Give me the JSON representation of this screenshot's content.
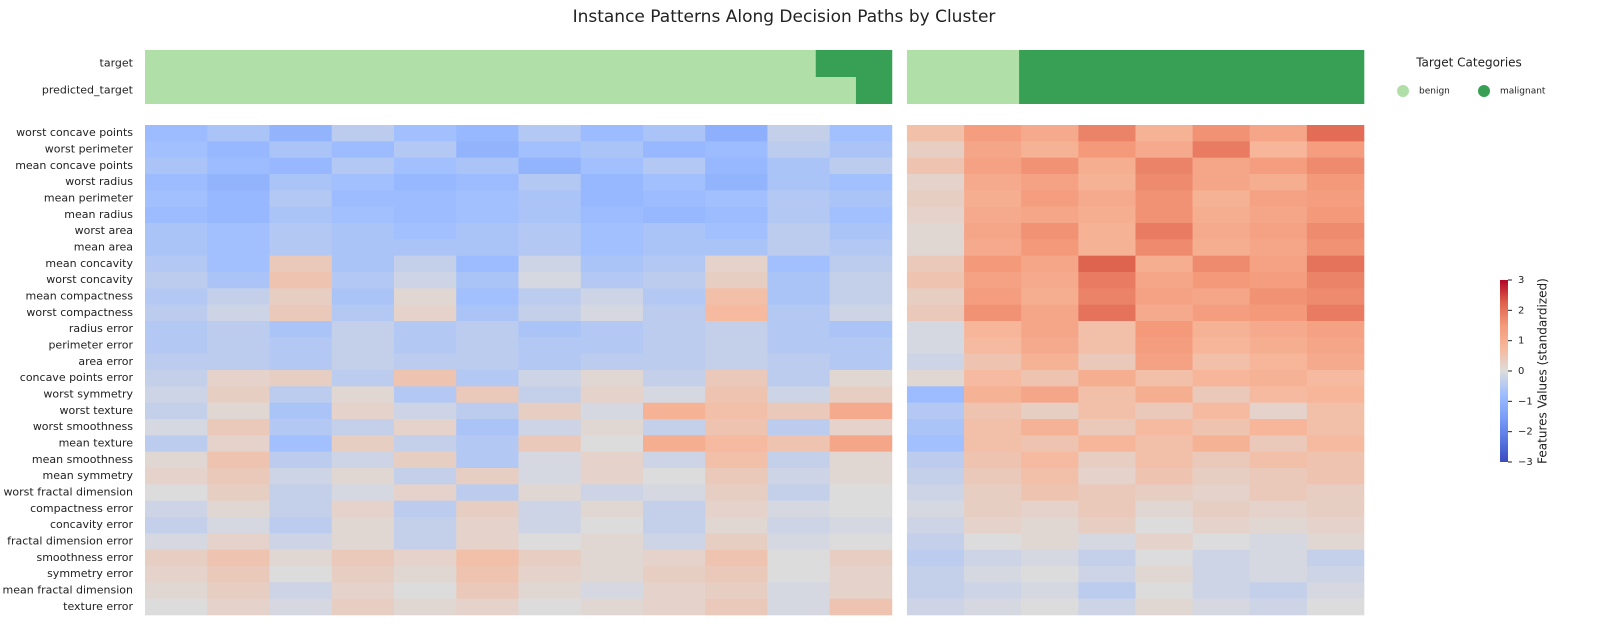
{
  "chart_data": {
    "type": "heatmap",
    "title": "Instance Patterns Along Decision Paths by Cluster",
    "features": [
      "worst concave points",
      "worst perimeter",
      "mean concave points",
      "worst radius",
      "mean perimeter",
      "mean radius",
      "worst area",
      "mean area",
      "mean concavity",
      "worst concavity",
      "mean compactness",
      "worst compactness",
      "radius error",
      "perimeter error",
      "area error",
      "concave points error",
      "worst symmetry",
      "worst texture",
      "worst smoothness",
      "mean texture",
      "mean smoothness",
      "mean symmetry",
      "worst fractal dimension",
      "compactness error",
      "concavity error",
      "fractal dimension error",
      "smoothness error",
      "symmetry error",
      "mean fractal dimension",
      "texture error"
    ],
    "annotation_rows": [
      "target",
      "predicted_target"
    ],
    "legend": {
      "title": "Target Categories",
      "categories": [
        {
          "name": "benign",
          "color": "#b0dfa8"
        },
        {
          "name": "malignant",
          "color": "#37a055"
        }
      ]
    },
    "colormap": [
      "#3b4cc0",
      "#5977e3",
      "#7b9ff9",
      "#9ebeff",
      "#dddcdc",
      "#f7b89c",
      "#f49a7b",
      "#de604d",
      "#b40426"
    ],
    "colorbar": {
      "label": "Features Values (standardized)",
      "lim": [
        -3,
        3
      ],
      "ticks": [
        {
          "value": -3,
          "label": "−3"
        },
        {
          "value": -2,
          "label": "−2"
        },
        {
          "value": -1,
          "label": "−1"
        },
        0,
        1,
        2,
        3
      ]
    },
    "clusters": [
      {
        "annotations": [
          [
            317,
            36
          ],
          [
            336,
            17
          ]
        ],
        "values": [
          [
            -0.8,
            -0.6,
            -1.0,
            -0.4,
            -0.7,
            -0.9,
            -0.5,
            -0.8,
            -0.6,
            -1.1,
            -0.3,
            -0.7
          ],
          [
            -0.7,
            -0.9,
            -0.6,
            -0.8,
            -0.5,
            -1.0,
            -0.7,
            -0.6,
            -0.9,
            -0.8,
            -0.4,
            -0.6
          ],
          [
            -0.6,
            -0.8,
            -0.9,
            -0.5,
            -0.7,
            -0.6,
            -1.0,
            -0.7,
            -0.5,
            -0.9,
            -0.6,
            -0.4
          ],
          [
            -0.8,
            -1.0,
            -0.6,
            -0.7,
            -0.9,
            -0.8,
            -0.5,
            -0.9,
            -0.7,
            -1.0,
            -0.6,
            -0.7
          ],
          [
            -0.7,
            -0.9,
            -0.5,
            -0.8,
            -0.8,
            -0.7,
            -0.6,
            -0.9,
            -0.8,
            -0.7,
            -0.5,
            -0.6
          ],
          [
            -0.8,
            -0.9,
            -0.6,
            -0.7,
            -0.8,
            -0.7,
            -0.6,
            -0.8,
            -0.9,
            -0.8,
            -0.5,
            -0.7
          ],
          [
            -0.6,
            -0.7,
            -0.5,
            -0.6,
            -0.7,
            -0.6,
            -0.5,
            -0.7,
            -0.6,
            -0.7,
            -0.4,
            -0.6
          ],
          [
            -0.6,
            -0.7,
            -0.5,
            -0.6,
            -0.6,
            -0.6,
            -0.5,
            -0.7,
            -0.6,
            -0.6,
            -0.4,
            -0.5
          ],
          [
            -0.5,
            -0.7,
            0.4,
            -0.6,
            -0.3,
            -0.8,
            -0.2,
            -0.6,
            -0.5,
            0.2,
            -0.7,
            -0.4
          ],
          [
            -0.4,
            -0.6,
            0.5,
            -0.5,
            -0.2,
            -0.6,
            -0.1,
            -0.5,
            -0.4,
            0.3,
            -0.6,
            -0.3
          ],
          [
            -0.5,
            -0.3,
            0.3,
            -0.6,
            0.1,
            -0.7,
            -0.4,
            -0.2,
            -0.5,
            0.6,
            -0.6,
            -0.3
          ],
          [
            -0.4,
            -0.2,
            0.4,
            -0.5,
            0.2,
            -0.6,
            -0.3,
            -0.1,
            -0.4,
            0.7,
            -0.5,
            -0.2
          ],
          [
            -0.5,
            -0.4,
            -0.6,
            -0.3,
            -0.5,
            -0.4,
            -0.6,
            -0.5,
            -0.4,
            -0.3,
            -0.5,
            -0.6
          ],
          [
            -0.5,
            -0.4,
            -0.5,
            -0.3,
            -0.5,
            -0.4,
            -0.5,
            -0.5,
            -0.4,
            -0.3,
            -0.5,
            -0.5
          ],
          [
            -0.4,
            -0.4,
            -0.5,
            -0.3,
            -0.4,
            -0.4,
            -0.5,
            -0.4,
            -0.4,
            -0.3,
            -0.4,
            -0.5
          ],
          [
            -0.3,
            0.2,
            0.3,
            -0.4,
            0.5,
            -0.5,
            -0.2,
            0.1,
            -0.3,
            0.4,
            -0.4,
            0.1
          ],
          [
            -0.2,
            0.3,
            -0.4,
            0.1,
            -0.5,
            0.4,
            -0.3,
            0.2,
            -0.1,
            0.5,
            -0.2,
            0.3
          ],
          [
            -0.3,
            0.1,
            -0.6,
            0.2,
            -0.2,
            -0.4,
            0.3,
            -0.1,
            0.9,
            0.6,
            0.4,
            1.1
          ],
          [
            -0.1,
            0.4,
            -0.5,
            -0.3,
            0.2,
            -0.6,
            -0.2,
            0.1,
            -0.3,
            0.5,
            -0.4,
            0.2
          ],
          [
            -0.4,
            0.2,
            -0.7,
            0.3,
            -0.3,
            -0.5,
            0.4,
            0.0,
            1.0,
            0.7,
            0.5,
            1.2
          ],
          [
            0.1,
            0.5,
            -0.4,
            -0.2,
            0.3,
            -0.5,
            -0.1,
            0.2,
            -0.2,
            0.6,
            -0.3,
            0.1
          ],
          [
            0.2,
            0.4,
            -0.2,
            0.1,
            -0.3,
            0.3,
            -0.1,
            0.2,
            0.0,
            0.4,
            -0.2,
            0.1
          ],
          [
            0.0,
            0.3,
            -0.3,
            -0.1,
            0.2,
            -0.4,
            0.1,
            -0.2,
            -0.1,
            0.3,
            -0.3,
            0.0
          ],
          [
            -0.2,
            0.1,
            -0.3,
            0.2,
            -0.4,
            0.3,
            -0.2,
            0.1,
            -0.3,
            0.2,
            -0.1,
            0.0
          ],
          [
            -0.3,
            -0.1,
            -0.4,
            0.1,
            -0.3,
            0.2,
            -0.2,
            0.0,
            -0.3,
            0.1,
            -0.2,
            -0.1
          ],
          [
            -0.1,
            0.2,
            -0.2,
            0.1,
            -0.3,
            0.2,
            0.0,
            0.1,
            -0.2,
            0.3,
            -0.1,
            0.0
          ],
          [
            0.3,
            0.5,
            0.1,
            0.4,
            0.2,
            0.6,
            0.3,
            0.1,
            0.2,
            0.5,
            0.0,
            0.3
          ],
          [
            0.2,
            0.4,
            0.0,
            0.3,
            0.1,
            0.5,
            0.2,
            0.1,
            0.3,
            0.4,
            0.0,
            0.2
          ],
          [
            0.1,
            0.3,
            -0.2,
            0.2,
            0.0,
            0.4,
            0.1,
            -0.1,
            0.2,
            0.3,
            -0.1,
            0.2
          ],
          [
            0.0,
            0.2,
            -0.1,
            0.3,
            0.1,
            0.2,
            0.0,
            0.1,
            0.2,
            0.4,
            -0.1,
            0.5
          ]
        ]
      },
      {
        "annotations": [
          [
            53,
            163
          ],
          [
            53,
            163
          ]
        ],
        "values": [
          [
            0.6,
            1.4,
            1.1,
            1.8,
            0.9,
            1.6,
            1.2,
            2.1
          ],
          [
            0.3,
            1.2,
            0.9,
            1.5,
            1.1,
            1.9,
            0.8,
            1.4
          ],
          [
            0.5,
            1.3,
            1.6,
            1.0,
            1.8,
            1.2,
            1.4,
            1.7
          ],
          [
            0.2,
            1.1,
            1.3,
            0.9,
            1.7,
            1.2,
            1.0,
            1.5
          ],
          [
            0.3,
            1.0,
            1.4,
            1.1,
            1.6,
            0.9,
            1.3,
            1.4
          ],
          [
            0.2,
            1.1,
            1.2,
            1.0,
            1.6,
            1.0,
            1.2,
            1.5
          ],
          [
            0.1,
            1.2,
            1.6,
            0.9,
            1.9,
            1.1,
            1.3,
            1.7
          ],
          [
            0.1,
            1.1,
            1.5,
            0.9,
            1.7,
            1.0,
            1.2,
            1.6
          ],
          [
            0.4,
            1.5,
            1.2,
            2.2,
            1.0,
            1.7,
            1.3,
            2.0
          ],
          [
            0.5,
            1.3,
            1.1,
            1.9,
            1.2,
            1.5,
            1.4,
            1.8
          ],
          [
            0.3,
            1.4,
            1.0,
            1.8,
            1.3,
            1.2,
            1.6,
            1.7
          ],
          [
            0.4,
            1.6,
            1.2,
            2.0,
            1.1,
            1.4,
            1.5,
            1.9
          ],
          [
            -0.1,
            0.8,
            1.2,
            0.6,
            1.5,
            0.9,
            1.1,
            1.3
          ],
          [
            -0.1,
            0.7,
            1.1,
            0.6,
            1.4,
            0.8,
            1.0,
            1.2
          ],
          [
            -0.2,
            0.5,
            0.9,
            0.4,
            1.3,
            0.6,
            0.8,
            1.1
          ],
          [
            0.1,
            0.7,
            0.5,
            1.0,
            0.6,
            0.8,
            0.9,
            0.7
          ],
          [
            -0.8,
            0.9,
            1.2,
            0.6,
            1.0,
            0.4,
            0.7,
            0.8
          ],
          [
            -0.5,
            0.5,
            0.3,
            0.6,
            0.4,
            0.7,
            0.2,
            0.6
          ],
          [
            -0.6,
            0.6,
            0.9,
            0.4,
            0.7,
            0.5,
            0.8,
            0.6
          ],
          [
            -0.7,
            0.6,
            0.5,
            0.8,
            0.6,
            0.9,
            0.4,
            0.7
          ],
          [
            -0.4,
            0.5,
            0.7,
            0.3,
            0.6,
            0.4,
            0.6,
            0.5
          ],
          [
            -0.3,
            0.4,
            0.6,
            0.2,
            0.5,
            0.3,
            0.4,
            0.5
          ],
          [
            -0.2,
            0.3,
            0.5,
            0.4,
            0.3,
            0.2,
            0.4,
            0.3
          ],
          [
            -0.1,
            0.3,
            0.2,
            0.4,
            0.1,
            0.3,
            0.2,
            0.3
          ],
          [
            -0.2,
            0.2,
            0.1,
            0.3,
            0.0,
            0.2,
            0.1,
            0.2
          ],
          [
            -0.3,
            0.0,
            0.1,
            -0.1,
            0.2,
            0.0,
            -0.1,
            0.1
          ],
          [
            -0.4,
            -0.2,
            -0.1,
            -0.3,
            0.0,
            -0.2,
            -0.1,
            -0.3
          ],
          [
            -0.3,
            -0.1,
            0.0,
            -0.2,
            0.1,
            -0.2,
            -0.1,
            -0.2
          ],
          [
            -0.3,
            -0.2,
            -0.1,
            -0.4,
            0.0,
            -0.2,
            -0.3,
            -0.1
          ],
          [
            -0.2,
            -0.1,
            0.0,
            -0.2,
            0.1,
            -0.1,
            -0.2,
            0.0
          ]
        ]
      }
    ]
  }
}
